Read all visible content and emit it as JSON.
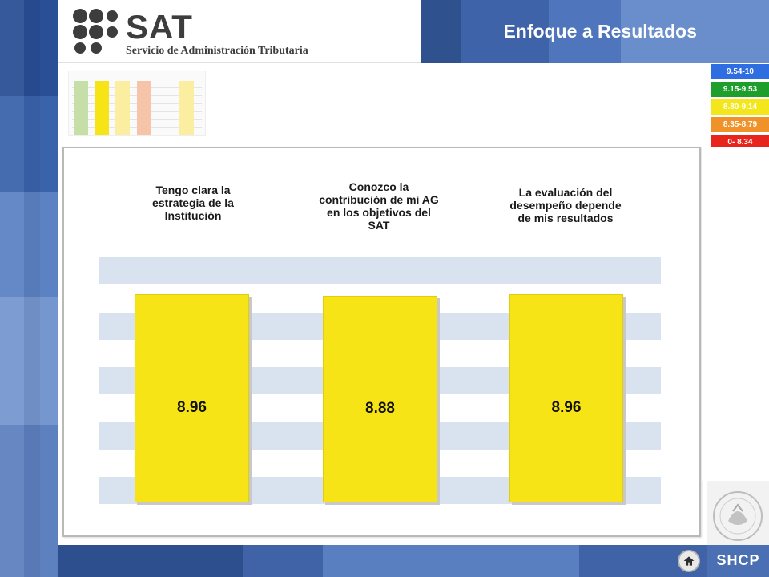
{
  "header": {
    "logo_name": "SAT",
    "logo_subtitle": "Servicio de Administración Tributaria",
    "title": "Enfoque a Resultados"
  },
  "legend": [
    {
      "label": "9.54-10",
      "color": "#2f6ee0"
    },
    {
      "label": "9.15-9.53",
      "color": "#1e9e2b"
    },
    {
      "label": "8.80-9.14",
      "color": "#f3e61b"
    },
    {
      "label": "8.35-8.79",
      "color": "#f0922a"
    },
    {
      "label": "0- 8.34",
      "color": "#e8251c"
    }
  ],
  "chart_data": {
    "type": "bar",
    "categories": [
      "Tengo clara la estrategia de la Institución",
      "Conozco la contribución de mi AG en los objetivos del SAT",
      "La evaluación del desempeño depende de mis resultados"
    ],
    "values": [
      8.96,
      8.88,
      8.96
    ],
    "value_labels": [
      "8.96",
      "8.88",
      "8.96"
    ],
    "bar_color": "#f7e417",
    "ylim": [
      0,
      10
    ]
  },
  "footer": {
    "brand": "SHCP",
    "home_icon": "home-icon",
    "emblem_icon": "mexico-coat-of-arms-icon"
  },
  "colors": {
    "primary_blue": "#4f76bd",
    "band_blue": "#d9e2ef"
  }
}
